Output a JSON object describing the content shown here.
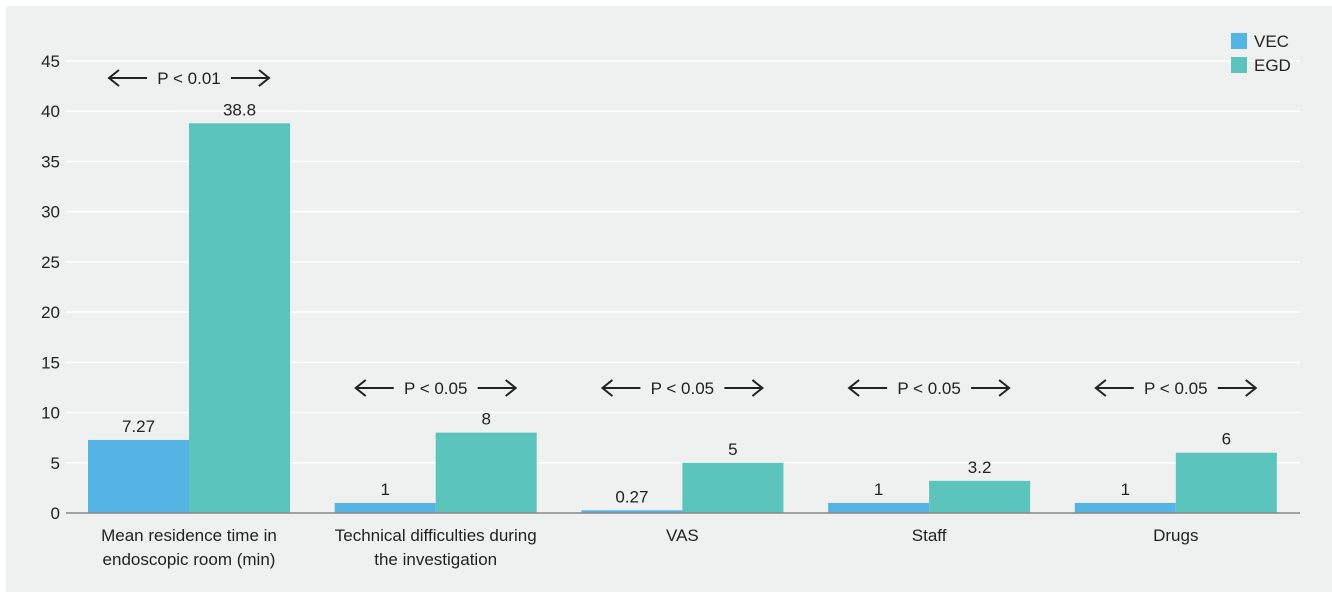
{
  "chart_data": {
    "type": "bar",
    "title": "",
    "xlabel": "",
    "ylabel": "",
    "ylim": [
      0,
      45
    ],
    "yticks": [
      0,
      5,
      10,
      15,
      20,
      25,
      30,
      35,
      40,
      45
    ],
    "grid": true,
    "legend_position": "top-right",
    "categories": [
      [
        "Mean residence time in",
        "endoscopic room (min)"
      ],
      [
        "Technical difficulties during",
        "the investigation"
      ],
      [
        "VAS"
      ],
      [
        "Staff"
      ],
      [
        "Drugs"
      ]
    ],
    "series": [
      {
        "name": "VEC",
        "color": "#56b4e4",
        "values": [
          7.27,
          1,
          0.27,
          1,
          1
        ],
        "labels": [
          "7.27",
          "1",
          "0.27",
          "1",
          "1"
        ]
      },
      {
        "name": "EGD",
        "color": "#5bc5bd",
        "values": [
          38.8,
          8,
          5,
          3.2,
          6
        ],
        "labels": [
          "38.8",
          "8",
          "5",
          "3.2",
          "6"
        ]
      }
    ],
    "annotations": [
      "P < 0.01",
      "P < 0.05",
      "P < 0.05",
      "P < 0.05",
      "P < 0.05"
    ]
  }
}
